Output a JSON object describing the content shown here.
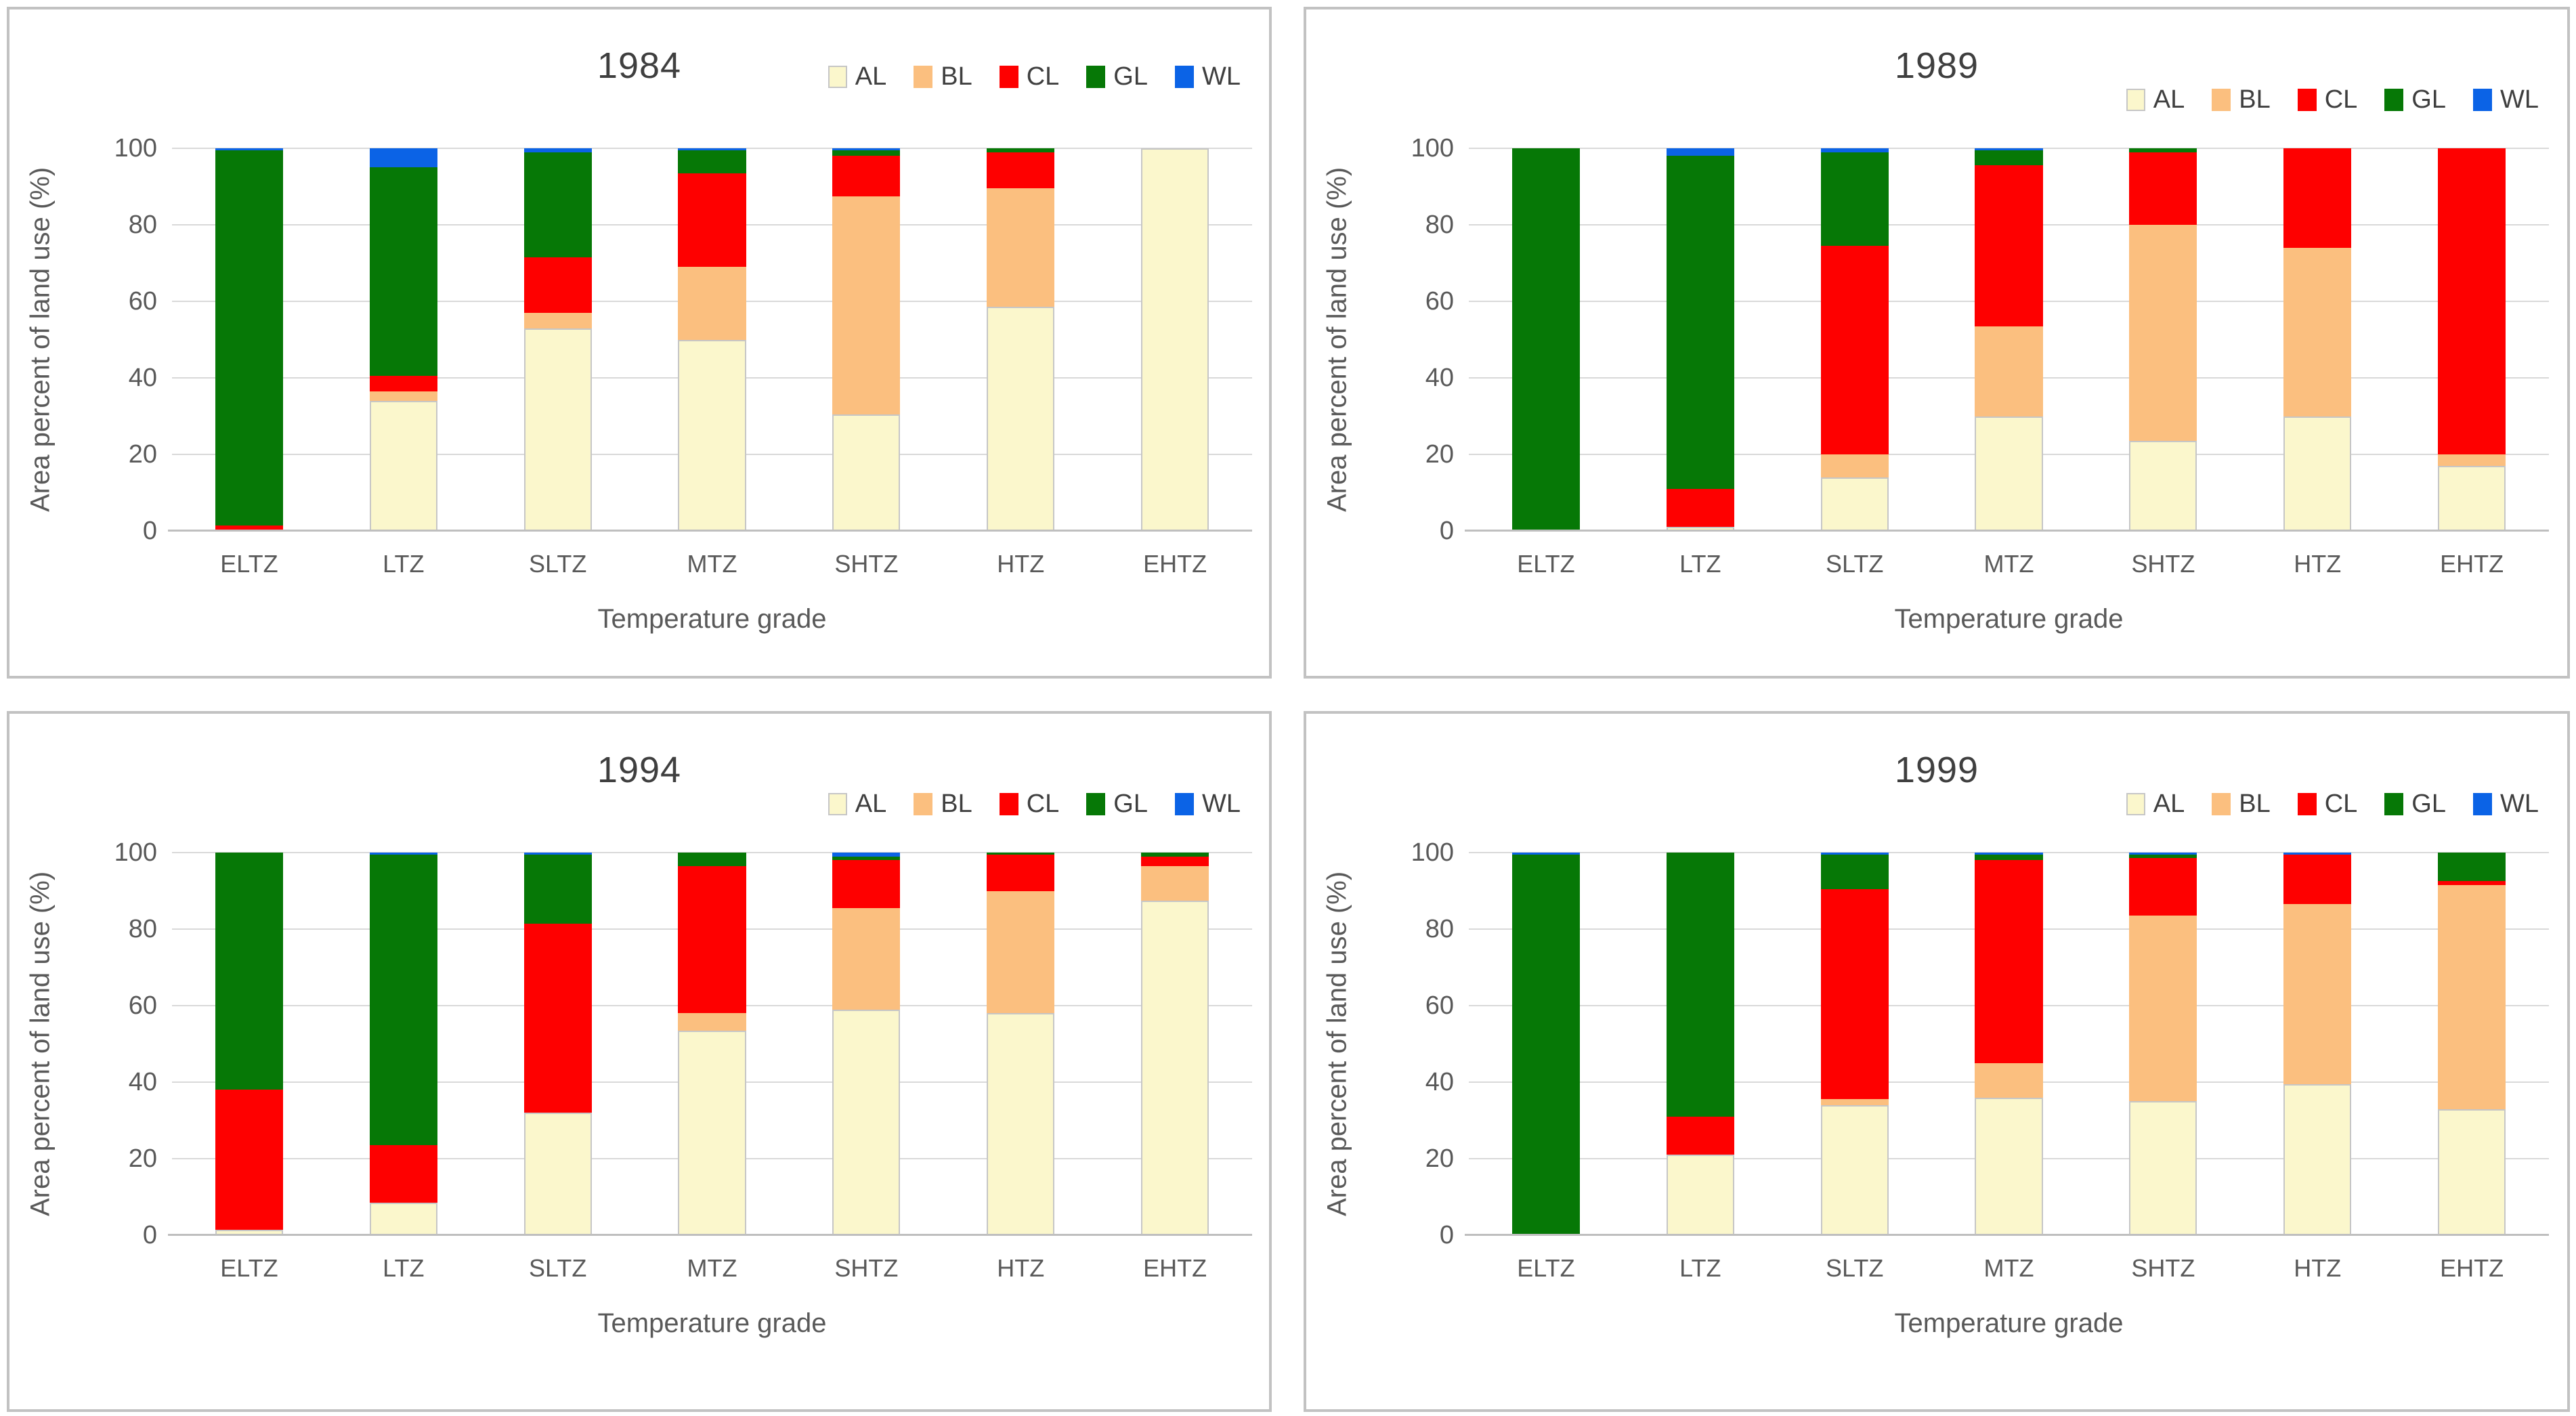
{
  "figure": {
    "ylabel": "Area percent of land use (%)",
    "xlabel": "Temperature grade",
    "legend_labels": [
      "AL",
      "BL",
      "CL",
      "GL",
      "WL"
    ],
    "yticks": [
      0,
      20,
      40,
      60,
      80,
      100
    ]
  },
  "colors": {
    "AL": "#FBF7CC",
    "BL": "#FBBF7F",
    "CL": "#FE0000",
    "GL": "#067806",
    "WL": "#0B63E6",
    "al_outline": "#C6C6C6",
    "grid": "#D9D9D9",
    "axis": "#BFBFBF",
    "tick_text": "#595959",
    "title_text": "#3F3F3F",
    "panel_border": "#C2C2C2",
    "background": "#FFFFFF"
  },
  "chart_data": [
    {
      "type": "bar",
      "stacked": true,
      "title": "1984",
      "xlabel": "Temperature grade",
      "ylabel": "Area percent of land use (%)",
      "ylim": [
        0,
        100
      ],
      "yticks": [
        0,
        20,
        40,
        60,
        80,
        100
      ],
      "grid": true,
      "legend_position": "top-right",
      "categories": [
        "ELTZ",
        "LTZ",
        "SLTZ",
        "MTZ",
        "SHTZ",
        "HTZ",
        "EHTZ"
      ],
      "series": [
        {
          "name": "AL",
          "values": [
            0,
            34,
            53,
            50,
            30.5,
            58.5,
            100
          ]
        },
        {
          "name": "BL",
          "values": [
            0,
            2.5,
            4,
            19,
            57,
            31,
            0
          ]
        },
        {
          "name": "CL",
          "values": [
            1.5,
            4,
            14.5,
            24.5,
            10.5,
            9.5,
            0
          ]
        },
        {
          "name": "GL",
          "values": [
            98,
            54.5,
            27.5,
            6,
            1.5,
            1,
            0
          ]
        },
        {
          "name": "WL",
          "values": [
            0.5,
            5,
            1,
            0.5,
            0.5,
            0,
            0
          ]
        }
      ]
    },
    {
      "type": "bar",
      "stacked": true,
      "title": "1989",
      "xlabel": "Temperature grade",
      "ylabel": "Area percent of land use (%)",
      "ylim": [
        0,
        100
      ],
      "yticks": [
        0,
        20,
        40,
        60,
        80,
        100
      ],
      "grid": true,
      "legend_position": "top-right",
      "categories": [
        "ELTZ",
        "LTZ",
        "SLTZ",
        "MTZ",
        "SHTZ",
        "HTZ",
        "EHTZ"
      ],
      "series": [
        {
          "name": "AL",
          "values": [
            0,
            1,
            14,
            30,
            23.5,
            30,
            17
          ]
        },
        {
          "name": "BL",
          "values": [
            0,
            0,
            6,
            23.5,
            56.5,
            44,
            3
          ]
        },
        {
          "name": "CL",
          "values": [
            0,
            10,
            54.5,
            42,
            19,
            26,
            80
          ]
        },
        {
          "name": "GL",
          "values": [
            100,
            87,
            24.5,
            4,
            1,
            0,
            0
          ]
        },
        {
          "name": "WL",
          "values": [
            0,
            2,
            1,
            0.5,
            0,
            0,
            0
          ]
        }
      ]
    },
    {
      "type": "bar",
      "stacked": true,
      "title": "1994",
      "xlabel": "Temperature grade",
      "ylabel": "Area percent of land use (%)",
      "ylim": [
        0,
        100
      ],
      "yticks": [
        0,
        20,
        40,
        60,
        80,
        100
      ],
      "grid": true,
      "legend_position": "top-right",
      "categories": [
        "ELTZ",
        "LTZ",
        "SLTZ",
        "MTZ",
        "SHTZ",
        "HTZ",
        "EHTZ"
      ],
      "series": [
        {
          "name": "AL",
          "values": [
            1.5,
            8.5,
            32,
            53.5,
            59,
            58,
            87.5
          ]
        },
        {
          "name": "BL",
          "values": [
            0,
            0,
            0,
            4.5,
            26.5,
            32,
            9
          ]
        },
        {
          "name": "CL",
          "values": [
            36.5,
            15,
            49.5,
            38.5,
            12.5,
            9.5,
            2.5
          ]
        },
        {
          "name": "GL",
          "values": [
            62,
            76,
            18,
            3.5,
            1,
            0.5,
            1
          ]
        },
        {
          "name": "WL",
          "values": [
            0,
            0.5,
            0.5,
            0,
            1,
            0,
            0
          ]
        }
      ]
    },
    {
      "type": "bar",
      "stacked": true,
      "title": "1999",
      "xlabel": "Temperature grade",
      "ylabel": "Area percent of land use (%)",
      "ylim": [
        0,
        100
      ],
      "yticks": [
        0,
        20,
        40,
        60,
        80,
        100
      ],
      "grid": true,
      "legend_position": "top-right",
      "categories": [
        "ELTZ",
        "LTZ",
        "SLTZ",
        "MTZ",
        "SHTZ",
        "HTZ",
        "EHTZ"
      ],
      "series": [
        {
          "name": "AL",
          "values": [
            0,
            21,
            34,
            36,
            35,
            39.5,
            33
          ]
        },
        {
          "name": "BL",
          "values": [
            0,
            0,
            1.5,
            9,
            48.5,
            47,
            58.5
          ]
        },
        {
          "name": "CL",
          "values": [
            0,
            10,
            55,
            53,
            15,
            13,
            1
          ]
        },
        {
          "name": "GL",
          "values": [
            99.5,
            69,
            9,
            1.5,
            1,
            0,
            7.5
          ]
        },
        {
          "name": "WL",
          "values": [
            0.5,
            0,
            0.5,
            0.5,
            0.5,
            0.5,
            0
          ]
        }
      ]
    }
  ]
}
